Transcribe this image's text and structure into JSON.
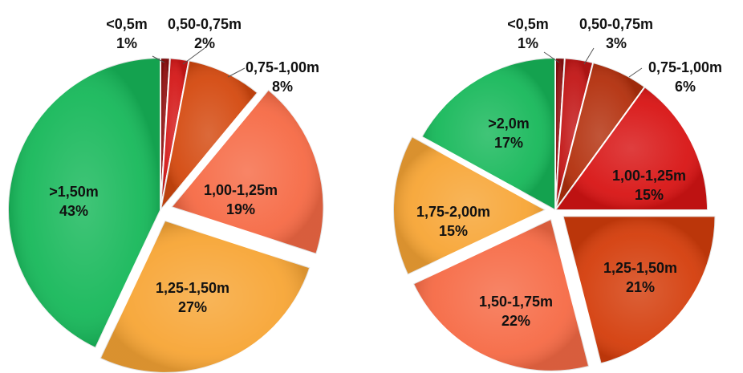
{
  "chart_data": [
    {
      "type": "pie",
      "title": "",
      "slices": [
        {
          "label": "<0,5m",
          "value": 1,
          "display": "1%",
          "color": "#8e1010"
        },
        {
          "label": "0,50-0,75m",
          "value": 2,
          "display": "2%",
          "color": "#d41818"
        },
        {
          "label": "0,75-1,00m",
          "value": 8,
          "display": "8%",
          "color": "#d4490f"
        },
        {
          "label": "1,00-1,25m",
          "value": 19,
          "display": "19%",
          "color": "#f66a45"
        },
        {
          "label": "1,25-1,50m",
          "value": 27,
          "display": "27%",
          "color": "#f7a535"
        },
        {
          "label": ">1,50m",
          "value": 43,
          "display": "43%",
          "color": "#17b85a"
        }
      ]
    },
    {
      "type": "pie",
      "title": "",
      "slices": [
        {
          "label": "<0,5m",
          "value": 1,
          "display": "1%",
          "color": "#8e1010"
        },
        {
          "label": "0,50-0,75m",
          "value": 3,
          "display": "3%",
          "color": "#c21616"
        },
        {
          "label": "0,75-1,00m",
          "value": 6,
          "display": "6%",
          "color": "#b3300d"
        },
        {
          "label": "1,00-1,25m",
          "value": 15,
          "display": "15%",
          "color": "#d81414"
        },
        {
          "label": "1,25-1,50m",
          "value": 21,
          "display": "21%",
          "color": "#d43d0b"
        },
        {
          "label": "1,50-1,75m",
          "value": 22,
          "display": "22%",
          "color": "#f66a45"
        },
        {
          "label": "1,75-2,00m",
          "value": 15,
          "display": "15%",
          "color": "#f7a535"
        },
        {
          "label": ">2,0m",
          "value": 17,
          "display": "17%",
          "color": "#17b85a"
        }
      ]
    }
  ]
}
